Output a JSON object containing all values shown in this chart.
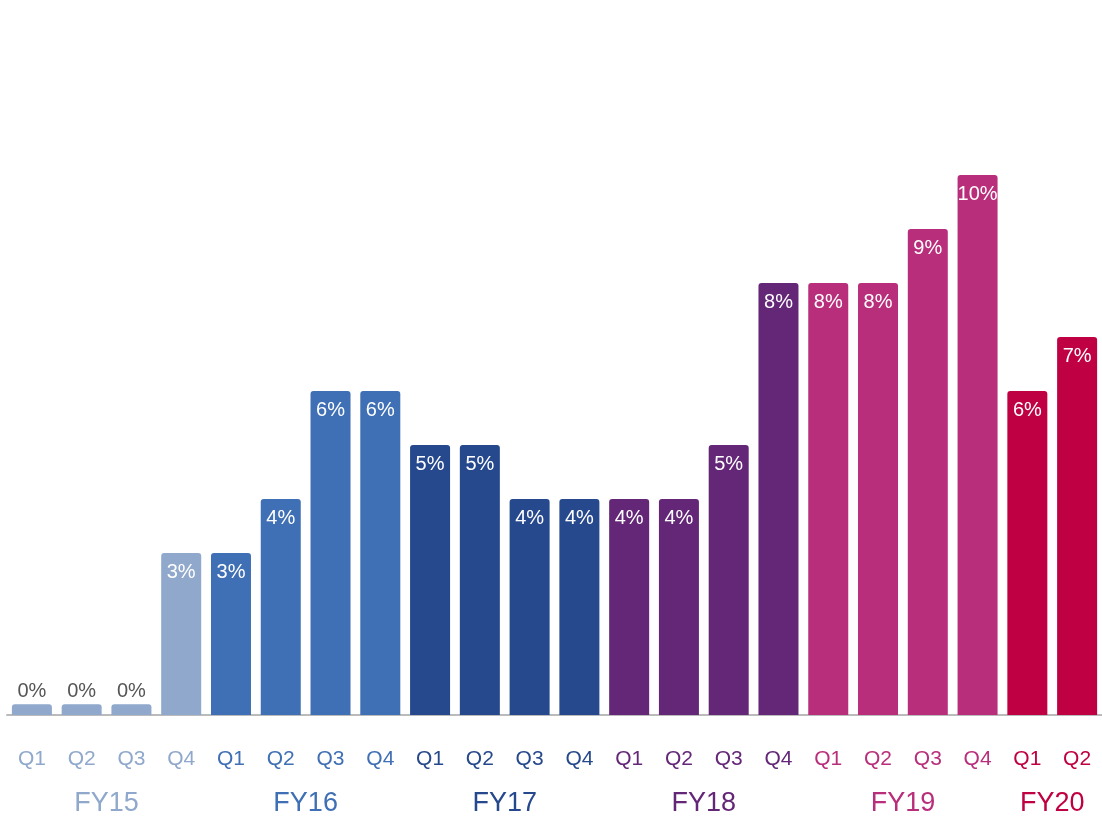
{
  "chart_data": {
    "type": "bar",
    "categories": [
      "Q1",
      "Q2",
      "Q3",
      "Q4",
      "Q1",
      "Q2",
      "Q3",
      "Q4",
      "Q1",
      "Q2",
      "Q3",
      "Q4",
      "Q1",
      "Q2",
      "Q3",
      "Q4",
      "Q1",
      "Q2",
      "Q3",
      "Q4",
      "Q1",
      "Q2"
    ],
    "values": [
      0.2,
      0.2,
      0.2,
      3,
      3,
      4,
      6,
      6,
      5,
      5,
      4,
      4,
      4,
      4,
      5,
      8,
      8,
      8,
      9,
      10,
      6,
      7
    ],
    "colors": [
      "#8fa8cc",
      "#8fa8cc",
      "#8fa8cc",
      "#8fa8cc",
      "#3f6fb4",
      "#3f6fb4",
      "#3f6fb4",
      "#3f6fb4",
      "#26488c",
      "#26488c",
      "#26488c",
      "#26488c",
      "#642677",
      "#642677",
      "#642677",
      "#642677",
      "#b92e7b",
      "#b92e7b",
      "#b92e7b",
      "#b92e7b",
      "#bf0042",
      "#bf0042"
    ],
    "value_labels": [
      "0%",
      "0%",
      "0%",
      "3%",
      "3%",
      "4%",
      "6%",
      "6%",
      "5%",
      "5%",
      "4%",
      "4%",
      "4%",
      "4%",
      "5%",
      "8%",
      "8%",
      "8%",
      "9%",
      "10%",
      "6%",
      "7%"
    ],
    "annotations": [
      "FY15",
      "FY16",
      "FY17",
      "FY18",
      "FY19",
      "FY20"
    ],
    "grid": false
  }
}
